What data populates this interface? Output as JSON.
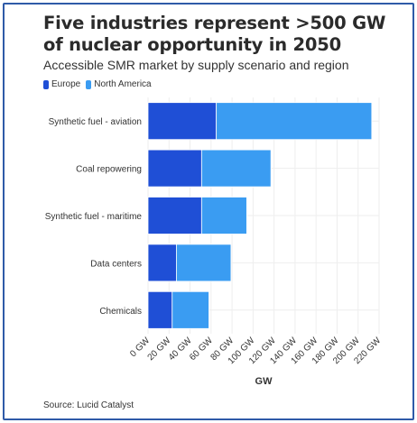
{
  "title": "Five industries represent >500 GW of nuclear opportunity in 2050",
  "subtitle": "Accessible SMR market by supply scenario and region",
  "source": "Source: Lucid Catalyst",
  "chart_data": {
    "type": "bar",
    "orientation": "horizontal",
    "stacked": true,
    "categories": [
      "Synthetic fuel - aviation",
      "Coal repowering",
      "Synthetic fuel - maritime",
      "Data centers",
      "Chemicals"
    ],
    "series": [
      {
        "name": "Europe",
        "color": "#1f4fd6",
        "values": [
          65,
          51,
          51,
          27,
          23
        ]
      },
      {
        "name": "North America",
        "color": "#3a9cf2",
        "values": [
          148,
          66,
          43,
          52,
          35
        ]
      }
    ],
    "xlabel": "GW",
    "xlim": [
      0,
      220
    ],
    "xticks": [
      "0 GW",
      "20 GW",
      "40 GW",
      "60 GW",
      "80 GW",
      "100 GW",
      "120 GW",
      "140 GW",
      "160 GW",
      "180 GW",
      "200 GW",
      "220 GW"
    ],
    "grid": true,
    "legend_position": "top-left"
  }
}
